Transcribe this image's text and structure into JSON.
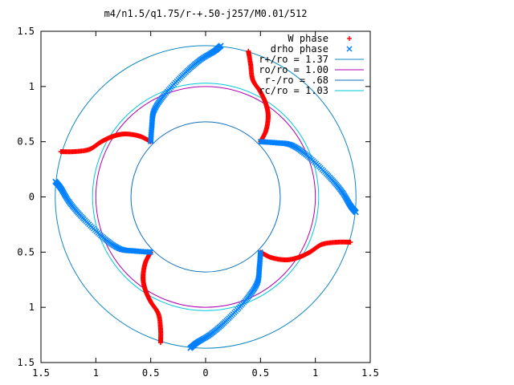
{
  "chart_data": {
    "type": "scatter",
    "title": "m4/n1.5/q1.75/r-+.50-j257/M0.01/512",
    "xlabel": "",
    "ylabel": "",
    "xlim": [
      -1.5,
      1.5
    ],
    "ylim": [
      -1.5,
      1.5
    ],
    "x_ticks": [
      -1.5,
      -1,
      -0.5,
      0,
      0.5,
      1,
      1.5
    ],
    "y_ticks": [
      -1.5,
      -1,
      -0.5,
      0,
      0.5,
      1,
      1.5
    ],
    "x_tick_labels": [
      "1.5",
      "1",
      "0.5",
      "0",
      "0.5",
      "1",
      "1.5"
    ],
    "y_tick_labels": [
      "1.5",
      "1",
      "0.5",
      "0",
      "0.5",
      "1",
      "1.5"
    ],
    "grid": false,
    "legend_position": "top-right",
    "series": [
      {
        "name": "W phase",
        "marker": "+",
        "color": "#ff0000",
        "arms": [
          [
            [
              0.39,
              1.32
            ],
            [
              0.41,
              1.2
            ],
            [
              0.43,
              1.06
            ],
            [
              0.5,
              0.95
            ],
            [
              0.55,
              0.84
            ],
            [
              0.57,
              0.73
            ],
            [
              0.55,
              0.6
            ],
            [
              0.5,
              0.5
            ]
          ],
          [
            [
              -1.32,
              0.41
            ],
            [
              -1.2,
              0.41
            ],
            [
              -1.06,
              0.43
            ],
            [
              -0.95,
              0.5
            ],
            [
              -0.84,
              0.55
            ],
            [
              -0.73,
              0.57
            ],
            [
              -0.6,
              0.55
            ],
            [
              -0.5,
              0.5
            ]
          ],
          [
            [
              -0.41,
              -1.32
            ],
            [
              -0.41,
              -1.2
            ],
            [
              -0.43,
              -1.06
            ],
            [
              -0.5,
              -0.95
            ],
            [
              -0.55,
              -0.84
            ],
            [
              -0.57,
              -0.73
            ],
            [
              -0.55,
              -0.6
            ],
            [
              -0.5,
              -0.5
            ]
          ],
          [
            [
              1.32,
              -0.41
            ],
            [
              1.2,
              -0.41
            ],
            [
              1.06,
              -0.43
            ],
            [
              0.95,
              -0.5
            ],
            [
              0.84,
              -0.55
            ],
            [
              0.73,
              -0.57
            ],
            [
              0.6,
              -0.55
            ],
            [
              0.5,
              -0.5
            ]
          ]
        ]
      },
      {
        "name": "drho phase",
        "marker": "x",
        "color": "#0080ff",
        "arms": [
          [
            [
              -0.5,
              0.5
            ],
            [
              -0.49,
              0.64
            ],
            [
              -0.47,
              0.78
            ],
            [
              -0.37,
              0.93
            ],
            [
              -0.2,
              1.11
            ],
            [
              -0.05,
              1.24
            ],
            [
              0.08,
              1.32
            ],
            [
              0.14,
              1.37
            ]
          ],
          [
            [
              -0.5,
              -0.5
            ],
            [
              -0.64,
              -0.49
            ],
            [
              -0.78,
              -0.47
            ],
            [
              -0.93,
              -0.37
            ],
            [
              -1.11,
              -0.2
            ],
            [
              -1.24,
              -0.05
            ],
            [
              -1.32,
              0.08
            ],
            [
              -1.37,
              0.14
            ]
          ],
          [
            [
              0.5,
              -0.5
            ],
            [
              0.49,
              -0.64
            ],
            [
              0.47,
              -0.78
            ],
            [
              0.37,
              -0.93
            ],
            [
              0.2,
              -1.11
            ],
            [
              0.05,
              -1.24
            ],
            [
              -0.08,
              -1.32
            ],
            [
              -0.14,
              -1.37
            ]
          ],
          [
            [
              0.5,
              0.5
            ],
            [
              0.64,
              0.49
            ],
            [
              0.78,
              0.47
            ],
            [
              0.93,
              0.37
            ],
            [
              1.11,
              0.2
            ],
            [
              1.24,
              0.05
            ],
            [
              1.32,
              -0.08
            ],
            [
              1.37,
              -0.14
            ]
          ]
        ]
      }
    ],
    "circles": [
      {
        "name": "r+/ro = 1.37",
        "radius": 1.37,
        "color": "#0f88c0"
      },
      {
        "name": "ro/ro = 1.00",
        "radius": 1.0,
        "color": "#b000b0"
      },
      {
        "name": "r-/ro = .68",
        "radius": 0.68,
        "color": "#0f6fc0"
      },
      {
        "name": "rc/ro = 1.03",
        "radius": 1.03,
        "color": "#00c8d8"
      }
    ]
  }
}
